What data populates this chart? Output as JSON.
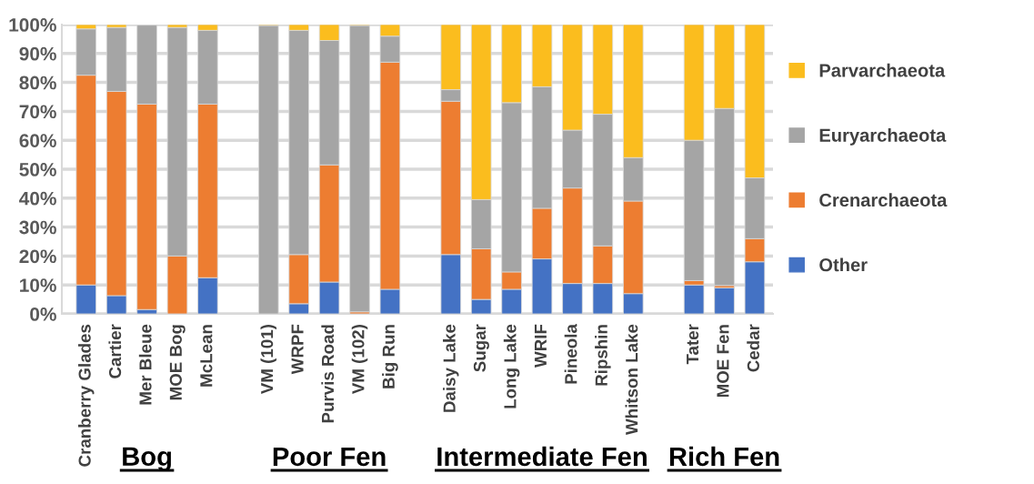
{
  "chart_data": {
    "type": "bar",
    "stacked": true,
    "categories": [
      "Cranberry Glades",
      "Cartier",
      "Mer Bleue",
      "MOE Bog",
      "McLean",
      null,
      "VM (101)",
      "WRPF",
      "Purvis Road",
      "VM (102)",
      "Big Run",
      null,
      "Daisy Lake",
      "Sugar",
      "Long Lake",
      "WRIF",
      "Pineola",
      "Ripshin",
      "Whitson Lake",
      null,
      "Tater",
      "MOE Fen",
      "Cedar"
    ],
    "series": [
      {
        "name": "Other",
        "color": "#4472c4",
        "values": [
          10,
          6.3,
          1.5,
          0,
          12.5,
          null,
          0,
          3.5,
          11,
          0,
          8.5,
          null,
          20.5,
          5,
          8.5,
          19,
          10.5,
          10.5,
          7,
          null,
          10,
          9,
          18
        ]
      },
      {
        "name": "Crenarchaeota",
        "color": "#ed7d31",
        "values": [
          72.5,
          70.6,
          71,
          20,
          60,
          null,
          0,
          17,
          40.5,
          0.7,
          78.5,
          null,
          53,
          17.5,
          6,
          17.5,
          33,
          13,
          32,
          null,
          1.5,
          0.8,
          8
        ]
      },
      {
        "name": "Euryarchaeota",
        "color": "#a5a5a5",
        "values": [
          16,
          22.1,
          27.3,
          79,
          25.5,
          null,
          99.7,
          77.5,
          43,
          99,
          9,
          null,
          4,
          17,
          58.5,
          42,
          20,
          45.5,
          15,
          null,
          48.5,
          61.2,
          21
        ]
      },
      {
        "name": "Parvarchaeota",
        "color": "#fbbd1e",
        "values": [
          1.5,
          1,
          null,
          1,
          2,
          null,
          0.3,
          2,
          5.5,
          0.3,
          4,
          null,
          22.5,
          60.5,
          27,
          21.5,
          36.5,
          31,
          46,
          null,
          40,
          29,
          53
        ]
      }
    ],
    "ylim": [
      0,
      100
    ],
    "yticks": [
      {
        "value": 0,
        "label": "0%"
      },
      {
        "value": 10,
        "label": "10%"
      },
      {
        "value": 20,
        "label": "20%"
      },
      {
        "value": 30,
        "label": "30%"
      },
      {
        "value": 40,
        "label": "40%"
      },
      {
        "value": 50,
        "label": "50%"
      },
      {
        "value": 60,
        "label": "60%"
      },
      {
        "value": 70,
        "label": "70%"
      },
      {
        "value": 80,
        "label": "80%"
      },
      {
        "value": 90,
        "label": "90%"
      },
      {
        "value": 100,
        "label": "100%"
      }
    ],
    "grid": "y",
    "legend": "right",
    "annotations": [
      "Bog",
      "Poor Fen",
      "Intermediate Fen",
      "Rich Fen"
    ]
  }
}
